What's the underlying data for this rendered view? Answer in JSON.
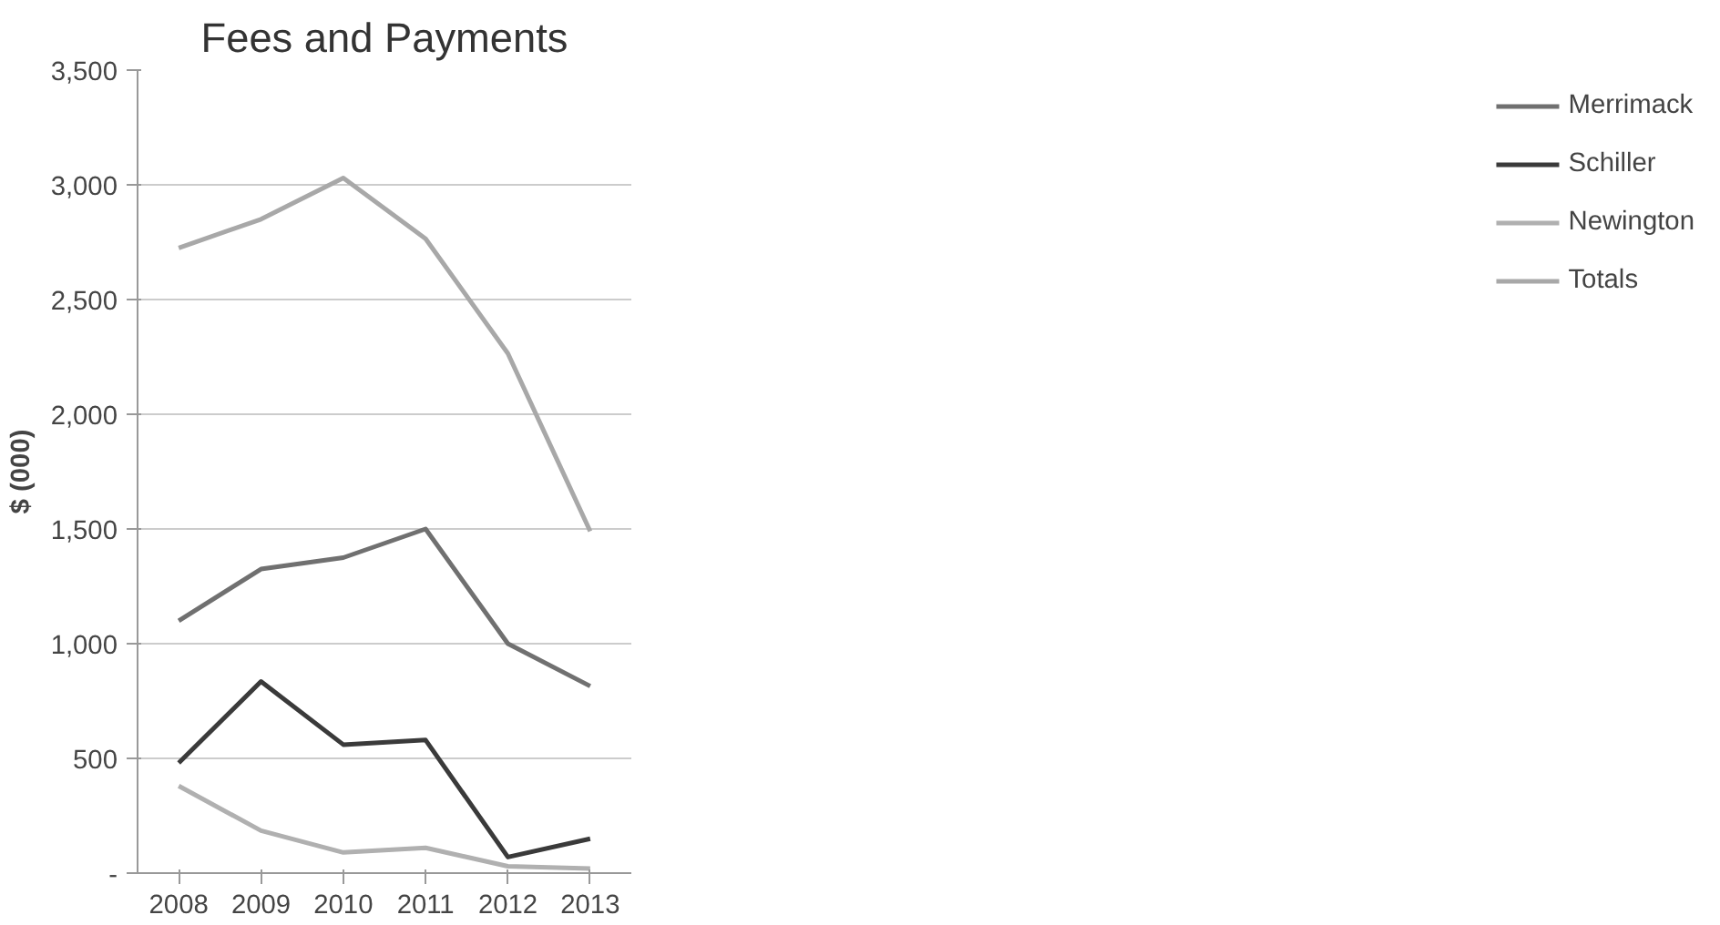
{
  "chart_data": {
    "type": "line",
    "title": "Fees and Payments",
    "ylabel": "$ (000)",
    "categories": [
      "2008",
      "2009",
      "2010",
      "2011",
      "2012",
      "2013"
    ],
    "series": [
      {
        "name": "Merrimack",
        "color": "#707070",
        "values": [
          1100,
          1325,
          1375,
          1500,
          1000,
          815
        ]
      },
      {
        "name": "Schiller",
        "color": "#3a3a3a",
        "values": [
          480,
          835,
          560,
          580,
          70,
          150
        ]
      },
      {
        "name": "Newington",
        "color": "#b0b0b0",
        "values": [
          380,
          185,
          90,
          110,
          30,
          20
        ]
      },
      {
        "name": "Totals",
        "color": "#a8a8a8",
        "values": [
          2725,
          2850,
          3030,
          2765,
          2265,
          1490
        ]
      }
    ],
    "ylim": [
      0,
      3500
    ],
    "yticks": [
      {
        "value": 0,
        "label": "-"
      },
      {
        "value": 500,
        "label": "500"
      },
      {
        "value": 1000,
        "label": "1,000"
      },
      {
        "value": 1500,
        "label": "1,500"
      },
      {
        "value": 2000,
        "label": "2,000"
      },
      {
        "value": 2500,
        "label": "2,500"
      },
      {
        "value": 3000,
        "label": "3,000"
      },
      {
        "value": 3500,
        "label": "3,500"
      }
    ],
    "grid": "y",
    "legend": "right",
    "line_style": "solid"
  }
}
